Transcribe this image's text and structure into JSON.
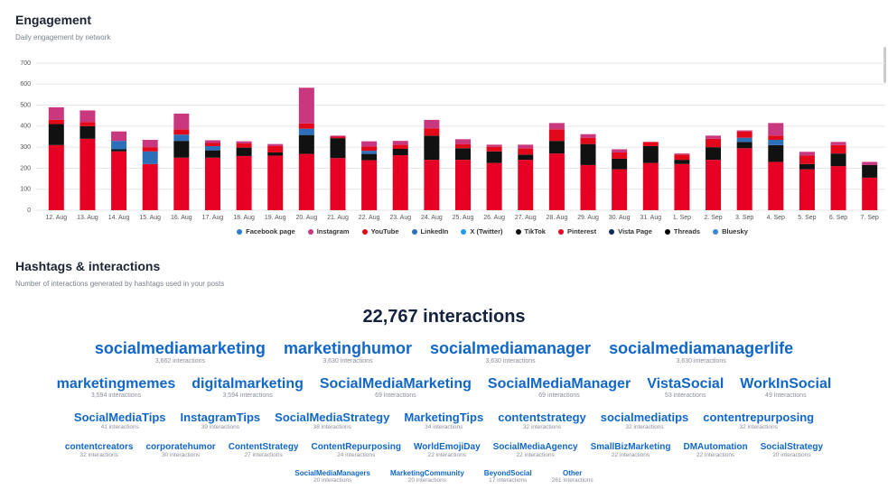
{
  "header": {
    "title": "Engagement",
    "subtitle": "Daily engagement by network"
  },
  "chart_data": {
    "type": "stacked-bar",
    "categories": [
      "12. Aug",
      "13. Aug",
      "14. Aug",
      "15. Aug",
      "16. Aug",
      "17. Aug",
      "18. Aug",
      "19. Aug",
      "20. Aug",
      "21. Aug",
      "22. Aug",
      "23. Aug",
      "24. Aug",
      "25. Aug",
      "26. Aug",
      "27. Aug",
      "28. Aug",
      "29. Aug",
      "30. Aug",
      "31. Aug",
      "1. Sep",
      "2. Sep",
      "3. Sep",
      "4. Sep",
      "5. Sep",
      "6. Sep",
      "7. Sep"
    ],
    "series": [
      {
        "name": "Facebook page",
        "color": "#2e7dd1",
        "values": [
          0,
          0,
          0,
          0,
          0,
          0,
          0,
          0,
          0,
          0,
          0,
          0,
          0,
          0,
          0,
          0,
          0,
          0,
          0,
          0,
          0,
          0,
          0,
          0,
          0,
          0,
          0
        ]
      },
      {
        "name": "Instagram",
        "color": "#c9387e",
        "values": [
          60,
          55,
          45,
          35,
          75,
          13,
          10,
          10,
          170,
          5,
          25,
          18,
          40,
          23,
          10,
          17,
          30,
          17,
          15,
          0,
          5,
          15,
          5,
          60,
          18,
          15,
          15
        ]
      },
      {
        "name": "YouTube",
        "color": "#e3071a",
        "values": [
          20,
          20,
          0,
          20,
          25,
          15,
          20,
          30,
          25,
          7,
          20,
          20,
          35,
          20,
          22,
          30,
          55,
          30,
          30,
          20,
          25,
          40,
          30,
          20,
          40,
          40,
          0
        ]
      },
      {
        "name": "LinkedIn",
        "color": "#2d6fb8",
        "values": [
          0,
          0,
          40,
          60,
          30,
          20,
          0,
          0,
          30,
          0,
          15,
          0,
          0,
          0,
          0,
          0,
          0,
          0,
          0,
          0,
          0,
          0,
          20,
          25,
          0,
          0,
          0
        ]
      },
      {
        "name": "X (Twitter)",
        "color": "#1d9bf0",
        "values": [
          0,
          0,
          0,
          0,
          0,
          0,
          0,
          0,
          0,
          0,
          0,
          0,
          0,
          0,
          0,
          0,
          0,
          0,
          0,
          0,
          0,
          0,
          0,
          0,
          0,
          0,
          0
        ]
      },
      {
        "name": "TikTok",
        "color": "#111111",
        "values": [
          100,
          60,
          10,
          0,
          80,
          35,
          40,
          15,
          90,
          95,
          30,
          30,
          115,
          55,
          55,
          25,
          60,
          100,
          50,
          80,
          20,
          60,
          30,
          80,
          25,
          60,
          60
        ]
      },
      {
        "name": "Pinterest",
        "color": "#e60023",
        "values": [
          310,
          340,
          280,
          220,
          250,
          250,
          258,
          260,
          268,
          248,
          238,
          262,
          240,
          240,
          225,
          240,
          270,
          215,
          195,
          225,
          220,
          240,
          295,
          230,
          195,
          210,
          155
        ]
      },
      {
        "name": "Vista Page",
        "color": "#0d2a5a",
        "values": [
          0,
          0,
          0,
          0,
          0,
          0,
          0,
          0,
          0,
          0,
          0,
          0,
          0,
          0,
          0,
          0,
          0,
          0,
          0,
          0,
          0,
          0,
          0,
          0,
          0,
          0,
          0
        ]
      },
      {
        "name": "Threads",
        "color": "#000000",
        "values": [
          0,
          0,
          0,
          0,
          0,
          0,
          0,
          0,
          0,
          0,
          0,
          0,
          0,
          0,
          0,
          0,
          0,
          0,
          0,
          0,
          0,
          0,
          0,
          0,
          0,
          0,
          0
        ]
      },
      {
        "name": "Bluesky",
        "color": "#3a87d6",
        "values": [
          0,
          0,
          0,
          0,
          0,
          0,
          0,
          0,
          0,
          0,
          0,
          0,
          0,
          0,
          0,
          0,
          0,
          0,
          0,
          0,
          0,
          0,
          0,
          0,
          0,
          0,
          0
        ]
      }
    ],
    "ylim": [
      0,
      700
    ],
    "yticks": [
      0,
      100,
      200,
      300,
      400,
      500,
      600,
      700
    ],
    "grid": true
  },
  "hashtags": {
    "title": "Hashtags & interactions",
    "subtitle": "Number of interactions generated by hashtags used in your posts",
    "total": "22,767 interactions",
    "rows": [
      [
        {
          "tag": "socialmediamarketing",
          "interactions": "3,662 interactions"
        },
        {
          "tag": "marketinghumor",
          "interactions": "3,630 interactions"
        },
        {
          "tag": "socialmediamanager",
          "interactions": "3,630 interactions"
        },
        {
          "tag": "socialmediamanagerlife",
          "interactions": "3,630 interactions"
        }
      ],
      [
        {
          "tag": "marketingmemes",
          "interactions": "3,594 interactions"
        },
        {
          "tag": "digitalmarketing",
          "interactions": "3,594 interactions"
        },
        {
          "tag": "SocialMediaMarketing",
          "interactions": "69 interactions"
        },
        {
          "tag": "SocialMediaManager",
          "interactions": "69 interactions"
        },
        {
          "tag": "VistaSocial",
          "interactions": "53 interactions"
        },
        {
          "tag": "WorkInSocial",
          "interactions": "49 interactions"
        }
      ],
      [
        {
          "tag": "SocialMediaTips",
          "interactions": "41 interactions"
        },
        {
          "tag": "InstagramTips",
          "interactions": "39 interactions"
        },
        {
          "tag": "SocialMediaStrategy",
          "interactions": "38 interactions"
        },
        {
          "tag": "MarketingTips",
          "interactions": "34 interactions"
        },
        {
          "tag": "contentstrategy",
          "interactions": "32 interactions"
        },
        {
          "tag": "socialmediatips",
          "interactions": "32 interactions"
        },
        {
          "tag": "contentrepurposing",
          "interactions": "32 interactions"
        }
      ],
      [
        {
          "tag": "contentcreators",
          "interactions": "32 interactions"
        },
        {
          "tag": "corporatehumor",
          "interactions": "30 interactions"
        },
        {
          "tag": "ContentStrategy",
          "interactions": "27 interactions"
        },
        {
          "tag": "ContentRepurposing",
          "interactions": "24 interactions"
        },
        {
          "tag": "WorldEmojiDay",
          "interactions": "22 interactions"
        },
        {
          "tag": "SocialMediaAgency",
          "interactions": "22 interactions"
        },
        {
          "tag": "SmallBizMarketing",
          "interactions": "22 interactions"
        },
        {
          "tag": "DMAutomation",
          "interactions": "22 interactions"
        },
        {
          "tag": "SocialStrategy",
          "interactions": "20 interactions"
        }
      ],
      [
        {
          "tag": "SocialMediaManagers",
          "interactions": "20 interactions"
        },
        {
          "tag": "MarketingCommunity",
          "interactions": "20 interactions"
        },
        {
          "tag": "BeyondSocial",
          "interactions": "17 interactions"
        },
        {
          "tag": "Other",
          "interactions": "261 interactions"
        }
      ]
    ]
  }
}
